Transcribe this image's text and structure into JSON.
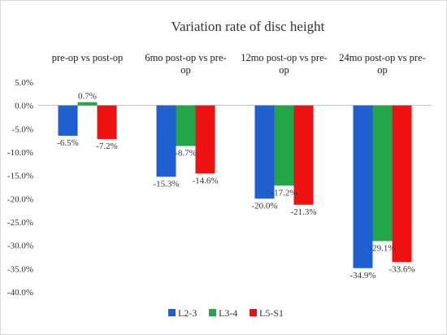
{
  "chart_data": {
    "type": "bar",
    "title": "Variation rate of disc height",
    "xlabel": "",
    "ylabel": "",
    "categories": [
      [
        "pre-op vs post-op"
      ],
      [
        "6mo post-op vs pre-",
        "op"
      ],
      [
        "12mo post-op vs pre-",
        "op"
      ],
      [
        "24mo post-op vs pre-",
        "op"
      ]
    ],
    "series": [
      {
        "name": "L2-3",
        "color": "#1f5fd0",
        "values": [
          -6.5,
          -15.3,
          -20.0,
          -34.9
        ]
      },
      {
        "name": "L3-4",
        "color": "#22a648",
        "values": [
          0.7,
          -8.7,
          -17.2,
          -29.1
        ]
      },
      {
        "name": "L5-S1",
        "color": "#ee1111",
        "values": [
          -7.2,
          -14.6,
          -21.3,
          -33.6
        ]
      }
    ],
    "data_labels": [
      [
        "-6.5%",
        "-15.3%",
        "-20.0%",
        "-34.9%"
      ],
      [
        "0.7%",
        "-8.7%",
        "-17.2%",
        "-29.1%"
      ],
      [
        "-7.2%",
        "-14.6%",
        "-21.3%",
        "-33.6%"
      ]
    ],
    "ylim": [
      -40,
      5
    ],
    "yticks": [
      5,
      0,
      -5,
      -10,
      -15,
      -20,
      -25,
      -30,
      -35,
      -40
    ],
    "ytick_labels": [
      "5.0%",
      "0.0%",
      "-5.0%",
      "-10.0%",
      "-15.0%",
      "-20.0%",
      "-25.0%",
      "-30.0%",
      "-35.0%",
      "-40.0%"
    ],
    "grid": false,
    "legend_position": "bottom"
  }
}
